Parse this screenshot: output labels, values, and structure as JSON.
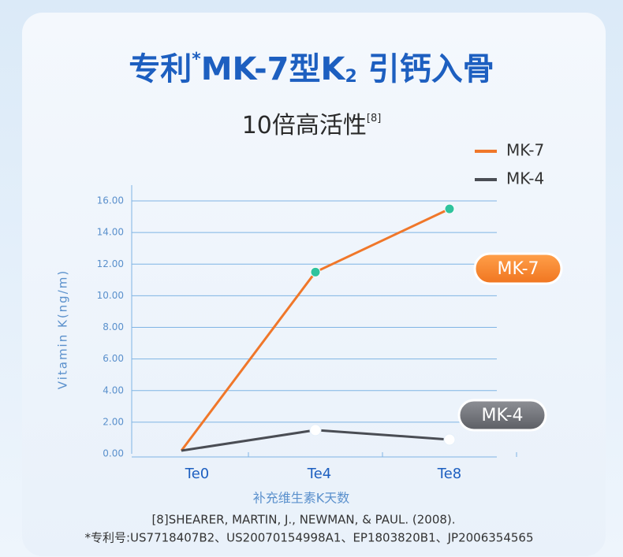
{
  "chart_data": {
    "type": "line",
    "title": [
      "专利",
      "*",
      "MK-7型K",
      "2",
      " 引钙入骨"
    ],
    "subtitle": [
      "10倍高活性",
      "[8]"
    ],
    "y_label": "Vitamin K(ng/m)",
    "x_label": "补充维生素K天数",
    "categories": [
      "Te0",
      "Te4",
      "Te8"
    ],
    "series": [
      {
        "name": "MK-7",
        "color": "#f0772a",
        "values": [
          0.2,
          11.5,
          15.5
        ]
      },
      {
        "name": "MK-4",
        "color": "#4a4d54",
        "values": [
          0.2,
          1.5,
          0.9
        ]
      }
    ],
    "ylim": [
      0,
      17
    ],
    "yticks": [
      {
        "value": 0,
        "label": "0.00"
      },
      {
        "value": 2,
        "label": "2.00"
      },
      {
        "value": 4,
        "label": "4.00"
      },
      {
        "value": 6,
        "label": "6.00"
      },
      {
        "value": 8,
        "label": "8.00"
      },
      {
        "value": 10,
        "label": "10.00"
      },
      {
        "value": 12,
        "label": "12.00"
      },
      {
        "value": 14,
        "label": "14.00"
      },
      {
        "value": 16,
        "label": "16.00"
      }
    ],
    "grid": true,
    "legend": "top-right",
    "footnotes": [
      "[8]SHEARER, MARTIN, J., NEWMAN, & PAUL. (2008).",
      "*专利号:US7718407B2、US20070154998A1、EP1803820B1、JP2006354565"
    ]
  }
}
